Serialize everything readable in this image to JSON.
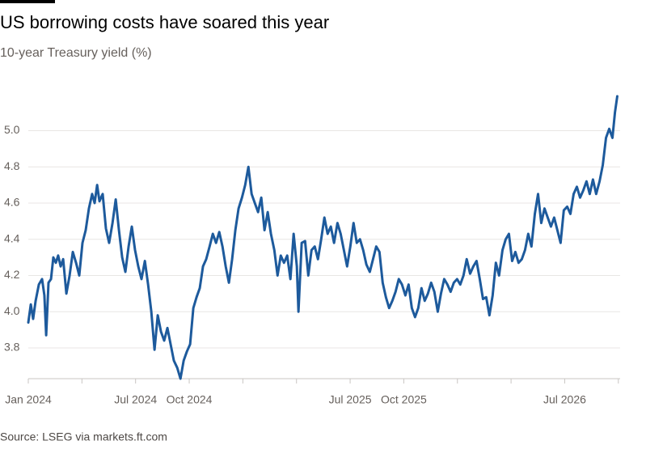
{
  "chart_data": {
    "type": "line",
    "title": "US borrowing costs have soared this year",
    "subtitle": "10-year Treasury yield (%)",
    "source": "Source: LSEG via markets.ft.com",
    "x": [
      0,
      0.14,
      0.27,
      0.41,
      0.59,
      0.77,
      0.9,
      1.0,
      1.13,
      1.27,
      1.4,
      1.54,
      1.67,
      1.81,
      1.95,
      2.13,
      2.31,
      2.49,
      2.67,
      2.85,
      3.03,
      3.21,
      3.39,
      3.57,
      3.71,
      3.85,
      3.98,
      4.16,
      4.34,
      4.52,
      4.71,
      4.89,
      5.07,
      5.25,
      5.43,
      5.61,
      5.79,
      5.97,
      6.15,
      6.33,
      6.52,
      6.7,
      6.88,
      7.06,
      7.24,
      7.42,
      7.6,
      7.78,
      7.96,
      8.14,
      8.33,
      8.51,
      8.69,
      8.87,
      9.05,
      9.23,
      9.41,
      9.59,
      9.77,
      9.95,
      10.14,
      10.32,
      10.5,
      10.68,
      10.86,
      11.04,
      11.22,
      11.4,
      11.58,
      11.76,
      11.95,
      12.13,
      12.31,
      12.49,
      12.67,
      12.85,
      13.03,
      13.21,
      13.39,
      13.57,
      13.76,
      13.94,
      14.12,
      14.3,
      14.48,
      14.66,
      14.84,
      15.02,
      15.11,
      15.29,
      15.48,
      15.66,
      15.84,
      16.02,
      16.2,
      16.38,
      16.56,
      16.74,
      16.92,
      17.1,
      17.29,
      17.47,
      17.65,
      17.83,
      18.01,
      18.19,
      18.37,
      18.55,
      18.73,
      18.91,
      19.1,
      19.28,
      19.46,
      19.64,
      19.82,
      20.0,
      20.18,
      20.36,
      20.54,
      20.72,
      20.9,
      21.09,
      21.27,
      21.45,
      21.63,
      21.81,
      21.99,
      22.17,
      22.35,
      22.53,
      22.71,
      22.9,
      23.08,
      23.26,
      23.44,
      23.62,
      23.8,
      23.98,
      24.16,
      24.34,
      24.52,
      24.71,
      24.89,
      25.07,
      25.25,
      25.43,
      25.61,
      25.79,
      25.97,
      26.15,
      26.33,
      26.52,
      26.7,
      26.88,
      27.06,
      27.24,
      27.42,
      27.6,
      27.78,
      27.96,
      28.14,
      28.33,
      28.51,
      28.69,
      28.87,
      29.05,
      29.23,
      29.41,
      29.59,
      29.77,
      29.95,
      30.14,
      30.32,
      30.5,
      30.68,
      30.86,
      31.04,
      31.22,
      31.4,
      31.58,
      31.76,
      31.95,
      32.13,
      32.31,
      32.49,
      32.67,
      32.81,
      32.94
    ],
    "series": [
      {
        "color": "#1d5a9c",
        "values": [
          3.94,
          4.04,
          3.96,
          4.06,
          4.15,
          4.18,
          4.09,
          3.87,
          4.16,
          4.18,
          4.3,
          4.27,
          4.31,
          4.25,
          4.29,
          4.1,
          4.2,
          4.33,
          4.27,
          4.2,
          4.38,
          4.45,
          4.57,
          4.65,
          4.6,
          4.7,
          4.61,
          4.65,
          4.46,
          4.38,
          4.49,
          4.62,
          4.45,
          4.3,
          4.22,
          4.36,
          4.47,
          4.34,
          4.25,
          4.18,
          4.28,
          4.15,
          4.0,
          3.79,
          3.98,
          3.89,
          3.84,
          3.91,
          3.82,
          3.73,
          3.69,
          3.63,
          3.73,
          3.78,
          3.82,
          4.02,
          4.08,
          4.13,
          4.25,
          4.29,
          4.36,
          4.43,
          4.38,
          4.44,
          4.36,
          4.25,
          4.16,
          4.29,
          4.45,
          4.57,
          4.63,
          4.7,
          4.8,
          4.65,
          4.6,
          4.55,
          4.63,
          4.45,
          4.55,
          4.43,
          4.34,
          4.2,
          4.31,
          4.27,
          4.31,
          4.18,
          4.43,
          4.25,
          4.0,
          4.38,
          4.39,
          4.2,
          4.34,
          4.36,
          4.29,
          4.4,
          4.52,
          4.43,
          4.47,
          4.38,
          4.49,
          4.43,
          4.34,
          4.25,
          4.36,
          4.49,
          4.38,
          4.4,
          4.34,
          4.26,
          4.22,
          4.29,
          4.36,
          4.33,
          4.16,
          4.08,
          4.02,
          4.06,
          4.11,
          4.18,
          4.15,
          4.09,
          4.15,
          4.02,
          3.97,
          4.02,
          4.13,
          4.06,
          4.1,
          4.16,
          4.11,
          4.0,
          4.1,
          4.18,
          4.15,
          4.11,
          4.16,
          4.18,
          4.15,
          4.2,
          4.29,
          4.21,
          4.25,
          4.28,
          4.18,
          4.07,
          4.08,
          3.98,
          4.09,
          4.27,
          4.2,
          4.34,
          4.4,
          4.43,
          4.28,
          4.33,
          4.27,
          4.29,
          4.34,
          4.43,
          4.36,
          4.54,
          4.65,
          4.49,
          4.57,
          4.52,
          4.47,
          4.52,
          4.45,
          4.38,
          4.56,
          4.58,
          4.54,
          4.65,
          4.69,
          4.63,
          4.67,
          4.72,
          4.65,
          4.73,
          4.65,
          4.72,
          4.81,
          4.96,
          5.01,
          4.96,
          5.1,
          5.19
        ]
      }
    ],
    "xlim": [
      0,
      33.1
    ],
    "xticks": [
      {
        "value": 0,
        "label": "Jan 2024"
      },
      {
        "value": 6,
        "label": "Jul 2024"
      },
      {
        "value": 9,
        "label": "Oct 2024"
      },
      {
        "value": 18,
        "label": "Jul 2025"
      },
      {
        "value": 21,
        "label": "Oct 2025"
      },
      {
        "value": 30,
        "label": "Jul 2026"
      }
    ],
    "xminorticks": [
      3,
      12,
      15,
      24,
      27,
      33
    ],
    "ylim": [
      3.63,
      5.23
    ],
    "yticks": [
      {
        "value": 3.8,
        "label": "3.8"
      },
      {
        "value": 4.0,
        "label": "4.0"
      },
      {
        "value": 4.2,
        "label": "4.2"
      },
      {
        "value": 4.4,
        "label": "4.4"
      },
      {
        "value": 4.6,
        "label": "4.6"
      },
      {
        "value": 4.8,
        "label": "4.8"
      },
      {
        "value": 5.0,
        "label": "5.0"
      }
    ],
    "grid": true
  }
}
